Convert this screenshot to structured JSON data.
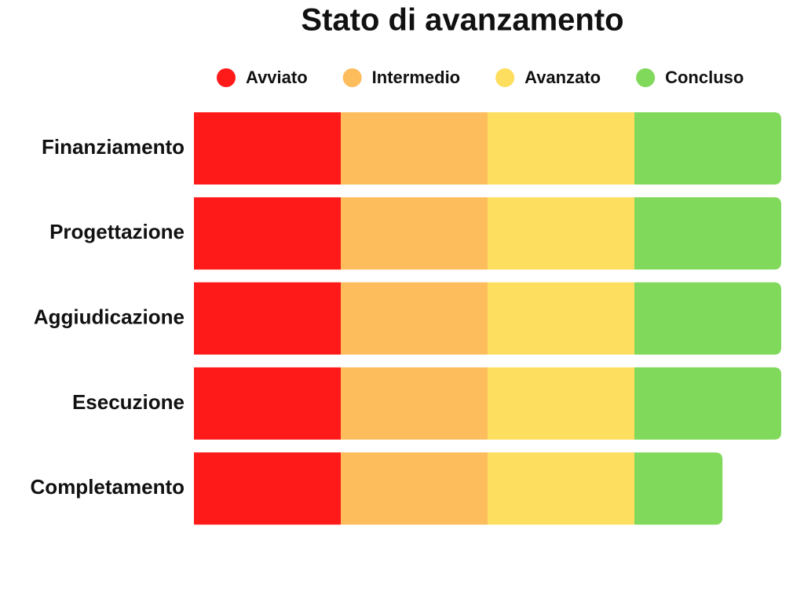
{
  "chart_data": {
    "type": "stacked-bar-horizontal",
    "title": "Stato di avanzamento",
    "categories": [
      "Finanziamento",
      "Progettazione",
      "Aggiudicazione",
      "Esecuzione",
      "Completamento"
    ],
    "series": [
      {
        "name": "Avviato",
        "color": "#ff1a1a",
        "values": [
          25,
          25,
          25,
          25,
          25
        ]
      },
      {
        "name": "Intermedio",
        "color": "#fdbd5d",
        "values": [
          25,
          25,
          25,
          25,
          25
        ]
      },
      {
        "name": "Avanzato",
        "color": "#fede5f",
        "values": [
          25,
          25,
          25,
          25,
          25
        ]
      },
      {
        "name": "Concluso",
        "color": "#80d95a",
        "values": [
          25,
          25,
          25,
          25,
          15
        ]
      }
    ]
  }
}
